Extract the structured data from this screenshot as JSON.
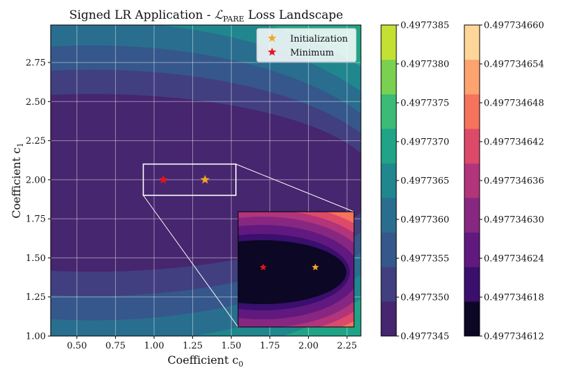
{
  "chart_data": {
    "type": "contour",
    "title_prefix": "Signed LR Application - ",
    "title_math": "ℒ",
    "title_sub": "PARE",
    "title_suffix": " Loss Landscape",
    "xlabel": "Coefficient c",
    "xlabel_sub": "0",
    "ylabel": "Coefficient c",
    "ylabel_sub": "1",
    "xlim": [
      0.33,
      2.34
    ],
    "ylim": [
      1.0,
      2.99
    ],
    "xticks": [
      "0.50",
      "0.75",
      "1.00",
      "1.25",
      "1.50",
      "1.75",
      "2.00",
      "2.25"
    ],
    "xtick_values": [
      0.5,
      0.75,
      1.0,
      1.25,
      1.5,
      1.75,
      2.0,
      2.25
    ],
    "yticks": [
      "1.00",
      "1.25",
      "1.50",
      "1.75",
      "2.00",
      "2.25",
      "2.50",
      "2.75"
    ],
    "ytick_values": [
      1.0,
      1.25,
      1.5,
      1.75,
      2.0,
      2.25,
      2.5,
      2.75
    ],
    "grid": true,
    "legend": [
      {
        "label": "Initialization",
        "color": "#f5a623"
      },
      {
        "label": "Minimum",
        "color": "#e8141b"
      }
    ],
    "initialization": {
      "x": 1.33,
      "y": 2.0
    },
    "minimum": {
      "x": 1.06,
      "y": 2.0
    },
    "zoom_box": {
      "x0": 0.93,
      "x1": 1.53,
      "y0": 1.9,
      "y1": 2.1
    },
    "main_colorbar": {
      "labels": [
        "0.4977345",
        "0.4977350",
        "0.4977355",
        "0.4977360",
        "0.4977365",
        "0.4977370",
        "0.4977375",
        "0.4977380",
        "0.4977385"
      ],
      "colors": [
        "#46266e",
        "#413f80",
        "#35578b",
        "#296e8e",
        "#1f878d",
        "#20a386",
        "#3bbb75",
        "#7ad151",
        "#c4e032"
      ]
    },
    "inset_colorbar": {
      "labels": [
        "0.497734612",
        "0.497734618",
        "0.497734624",
        "0.497734630",
        "0.497734636",
        "0.497734642",
        "0.497734648",
        "0.497734654",
        "0.497734660"
      ],
      "colors": [
        "#0b0724",
        "#3a0f6e",
        "#61197f",
        "#872781",
        "#b2347b",
        "#dd4a69",
        "#f6735c",
        "#fca36f",
        "#fed69a"
      ]
    }
  }
}
